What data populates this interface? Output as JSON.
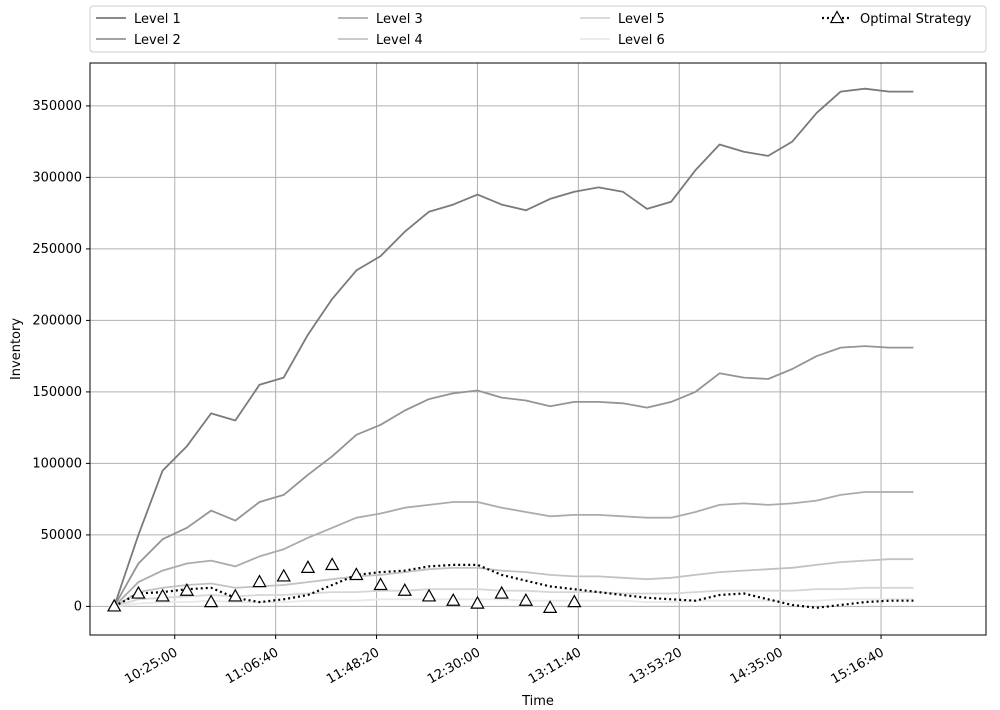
{
  "chart_data": {
    "type": "line",
    "xlabel": "Time",
    "ylabel": "Inventory",
    "x_ticks": [
      "10:25:00",
      "11:06:40",
      "11:48:20",
      "12:30:00",
      "13:11:40",
      "13:53:20",
      "14:35:00",
      "15:16:40"
    ],
    "y_ticks": [
      "0",
      "50000",
      "100000",
      "150000",
      "200000",
      "250000",
      "300000",
      "350000"
    ],
    "xlim": [
      "09:50:00",
      "16:00:00"
    ],
    "ylim": [
      -20000,
      380000
    ],
    "grid": true,
    "legend": "top, above plot, 4 columns",
    "x": [
      "10:00:00",
      "10:10:00",
      "10:20:00",
      "10:30:00",
      "10:40:00",
      "10:50:00",
      "11:00:00",
      "11:10:00",
      "11:20:00",
      "11:30:00",
      "11:40:00",
      "11:50:00",
      "12:00:00",
      "12:10:00",
      "12:20:00",
      "12:30:00",
      "12:40:00",
      "12:50:00",
      "13:00:00",
      "13:10:00",
      "13:20:00",
      "13:30:00",
      "13:40:00",
      "13:50:00",
      "14:00:00",
      "14:10:00",
      "14:20:00",
      "14:30:00",
      "14:40:00",
      "14:50:00",
      "15:00:00",
      "15:10:00",
      "15:20:00",
      "15:30:00"
    ],
    "series": [
      {
        "name": "Level 1",
        "color": "#7a7a7a",
        "values": [
          0,
          50000,
          95000,
          112000,
          135000,
          130000,
          155000,
          160000,
          190000,
          215000,
          235000,
          245000,
          262000,
          276000,
          281000,
          288000,
          281000,
          277000,
          285000,
          290000,
          293000,
          290000,
          278000,
          283000,
          305000,
          323000,
          318000,
          315000,
          325000,
          345000,
          360000,
          362000,
          360000,
          360000
        ]
      },
      {
        "name": "Level 2",
        "color": "#949494",
        "values": [
          0,
          30000,
          47000,
          55000,
          67000,
          60000,
          73000,
          78000,
          92000,
          105000,
          120000,
          127000,
          137000,
          145000,
          149000,
          151000,
          146000,
          144000,
          140000,
          143000,
          143000,
          142000,
          139000,
          143000,
          150000,
          163000,
          160000,
          159000,
          166000,
          175000,
          181000,
          182000,
          181000,
          181000
        ]
      },
      {
        "name": "Level 3",
        "color": "#ababab",
        "values": [
          0,
          17000,
          25000,
          30000,
          32000,
          28000,
          35000,
          40000,
          48000,
          55000,
          62000,
          65000,
          69000,
          71000,
          73000,
          73000,
          69000,
          66000,
          63000,
          64000,
          64000,
          63000,
          62000,
          62000,
          66000,
          71000,
          72000,
          71000,
          72000,
          74000,
          78000,
          80000,
          80000,
          80000
        ]
      },
      {
        "name": "Level 4",
        "color": "#c2c2c2",
        "values": [
          0,
          10000,
          13000,
          15000,
          16000,
          13000,
          14000,
          15000,
          17000,
          19000,
          21000,
          22000,
          24000,
          26000,
          27000,
          27000,
          25000,
          24000,
          22000,
          21000,
          21000,
          20000,
          19000,
          20000,
          22000,
          24000,
          25000,
          26000,
          27000,
          29000,
          31000,
          32000,
          33000,
          33000
        ]
      },
      {
        "name": "Level 5",
        "color": "#d6d6d6",
        "values": [
          0,
          5000,
          6000,
          7000,
          8000,
          7000,
          8000,
          8000,
          9000,
          10000,
          10000,
          11000,
          11000,
          12000,
          12000,
          12000,
          11000,
          11000,
          10000,
          10000,
          10000,
          9000,
          9000,
          9000,
          10000,
          11000,
          11000,
          11000,
          11000,
          12000,
          12000,
          13000,
          13000,
          13000
        ]
      },
      {
        "name": "Level 6",
        "color": "#e8e8e8",
        "values": [
          0,
          2000,
          3000,
          3000,
          4000,
          3000,
          3000,
          3000,
          4000,
          4000,
          4000,
          5000,
          5000,
          5000,
          5000,
          5000,
          5000,
          4000,
          4000,
          4000,
          4000,
          4000,
          3000,
          3000,
          4000,
          4000,
          4000,
          4000,
          4000,
          4000,
          5000,
          5000,
          5000,
          5000
        ]
      },
      {
        "name": "Optimal Strategy",
        "color": "#000000",
        "marker": "triangle",
        "values": [
          0,
          9000,
          10000,
          12000,
          13000,
          6000,
          3000,
          5000,
          8000,
          15000,
          22000,
          24000,
          25000,
          28000,
          29000,
          29000,
          22000,
          18000,
          14000,
          12000,
          10000,
          8000,
          6000,
          5000,
          4000,
          8000,
          9000,
          5000,
          1000,
          -1000,
          1000,
          3000,
          4000,
          4000
        ]
      }
    ],
    "markers": {
      "series": "Optimal Strategy",
      "x": [
        "10:00:00",
        "10:10:00",
        "10:20:00",
        "10:30:00",
        "10:40:00",
        "10:50:00",
        "11:00:00",
        "11:10:00",
        "11:20:00",
        "11:30:00",
        "11:40:00",
        "11:50:00",
        "12:00:00",
        "12:10:00",
        "12:20:00",
        "12:30:00",
        "12:40:00",
        "12:50:00",
        "13:00:00",
        "13:10:00"
      ],
      "values": [
        0,
        9000,
        7000,
        11000,
        3000,
        7000,
        17000,
        21000,
        27000,
        29000,
        22000,
        15000,
        11000,
        7000,
        4000,
        2000,
        9000,
        4000,
        -1000,
        3000
      ]
    }
  }
}
